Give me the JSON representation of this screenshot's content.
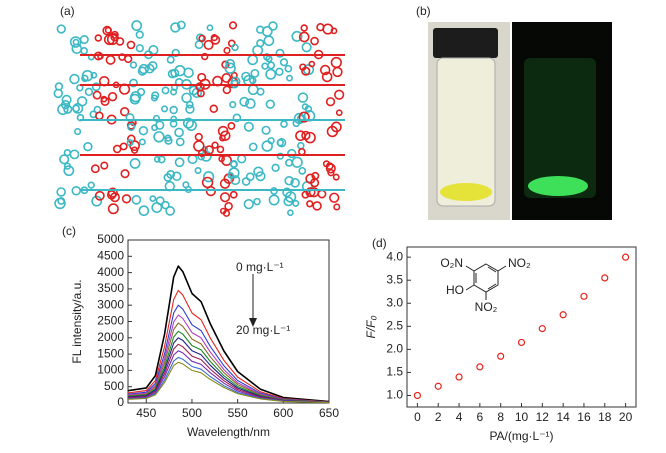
{
  "panel_labels": [
    "(a)",
    "(b)",
    "(c)",
    "(d)"
  ],
  "chart_data": [
    {
      "type": "line",
      "x_label": "Wavelength/nm",
      "y_label": "FL intensity/a.u.",
      "annotations": [
        "0 mg·L⁻¹",
        "20 mg·L⁻¹"
      ],
      "x": [
        430,
        450,
        460,
        470,
        480,
        485,
        490,
        500,
        510,
        520,
        535,
        550,
        575,
        600,
        650
      ],
      "xlim": [
        430,
        650
      ],
      "xticks": [
        450,
        500,
        550,
        600,
        650
      ],
      "ylim": [
        0,
        5000
      ],
      "yticks": [
        0,
        500,
        1000,
        1500,
        2000,
        2500,
        3000,
        3500,
        4000,
        4500,
        5000
      ],
      "series": [
        {
          "color": "#000000",
          "values": [
            378,
            462,
            840,
            2100,
            3864,
            4200,
            4032,
            3360,
            3108,
            2436,
            1596,
            966,
            420,
            168,
            42
          ]
        },
        {
          "color": "#e8241c",
          "values": [
            311,
            380,
            690,
            1725,
            3174,
            3450,
            3312,
            2760,
            2553,
            2001,
            1311,
            794,
            345,
            138,
            35
          ]
        },
        {
          "color": "#2f3fd0",
          "values": [
            270,
            330,
            600,
            1500,
            2760,
            3000,
            2880,
            2400,
            2220,
            1740,
            1140,
            690,
            300,
            120,
            30
          ]
        },
        {
          "color": "#b03cc0",
          "values": [
            243,
            297,
            540,
            1350,
            2484,
            2700,
            2592,
            2160,
            1998,
            1566,
            1026,
            621,
            270,
            108,
            27
          ]
        },
        {
          "color": "#8c6a2a",
          "values": [
            221,
            270,
            490,
            1225,
            2254,
            2450,
            2352,
            1960,
            1813,
            1421,
            931,
            564,
            245,
            98,
            25
          ]
        },
        {
          "color": "#1a8a2a",
          "values": [
            198,
            242,
            440,
            1100,
            2024,
            2200,
            2112,
            1760,
            1628,
            1276,
            836,
            506,
            220,
            88,
            22
          ]
        },
        {
          "color": "#1b1f8a",
          "values": [
            180,
            220,
            400,
            1000,
            1840,
            2000,
            1920,
            1600,
            1480,
            1160,
            760,
            460,
            200,
            80,
            20
          ]
        },
        {
          "color": "#a01c50",
          "values": [
            162,
            198,
            360,
            900,
            1656,
            1800,
            1728,
            1440,
            1332,
            1044,
            684,
            414,
            180,
            72,
            18
          ]
        },
        {
          "color": "#7a2ab0",
          "values": [
            144,
            176,
            320,
            800,
            1472,
            1600,
            1536,
            1280,
            1184,
            928,
            608,
            368,
            160,
            64,
            16
          ]
        },
        {
          "color": "#3a6ad0",
          "values": [
            126,
            154,
            280,
            700,
            1288,
            1400,
            1344,
            1120,
            1036,
            812,
            532,
            322,
            140,
            56,
            14
          ]
        },
        {
          "color": "#8a8a20",
          "values": [
            113,
            138,
            250,
            625,
            1150,
            1250,
            1200,
            1000,
            925,
            725,
            475,
            288,
            125,
            50,
            13
          ]
        }
      ]
    },
    {
      "type": "scatter",
      "x_label": "PA/(mg·L⁻¹)",
      "y_label": "F/F₀",
      "structure_labels": [
        "O₂N",
        "NO₂",
        "HO",
        "NO₂"
      ],
      "x": [
        0,
        2,
        4,
        6,
        8,
        10,
        12,
        14,
        16,
        18,
        20
      ],
      "values": [
        1.0,
        1.2,
        1.4,
        1.62,
        1.85,
        2.15,
        2.45,
        2.75,
        3.15,
        3.55,
        4.0
      ],
      "color": "#e8241c",
      "xlim": [
        -1,
        21
      ],
      "xticks": [
        0,
        2,
        4,
        6,
        8,
        10,
        12,
        14,
        16,
        18,
        20
      ],
      "ylim": [
        0.75,
        4.22
      ],
      "yticks": [
        {
          "value": 1,
          "label": "1.0"
        },
        {
          "value": 1.5,
          "label": "1.5"
        },
        {
          "value": 2,
          "label": "2.0"
        },
        {
          "value": 2.5,
          "label": "2.5"
        },
        {
          "value": 3,
          "label": "3.0"
        },
        {
          "value": 3.5,
          "label": "3.5"
        },
        {
          "value": 4,
          "label": "4.0"
        }
      ]
    }
  ]
}
